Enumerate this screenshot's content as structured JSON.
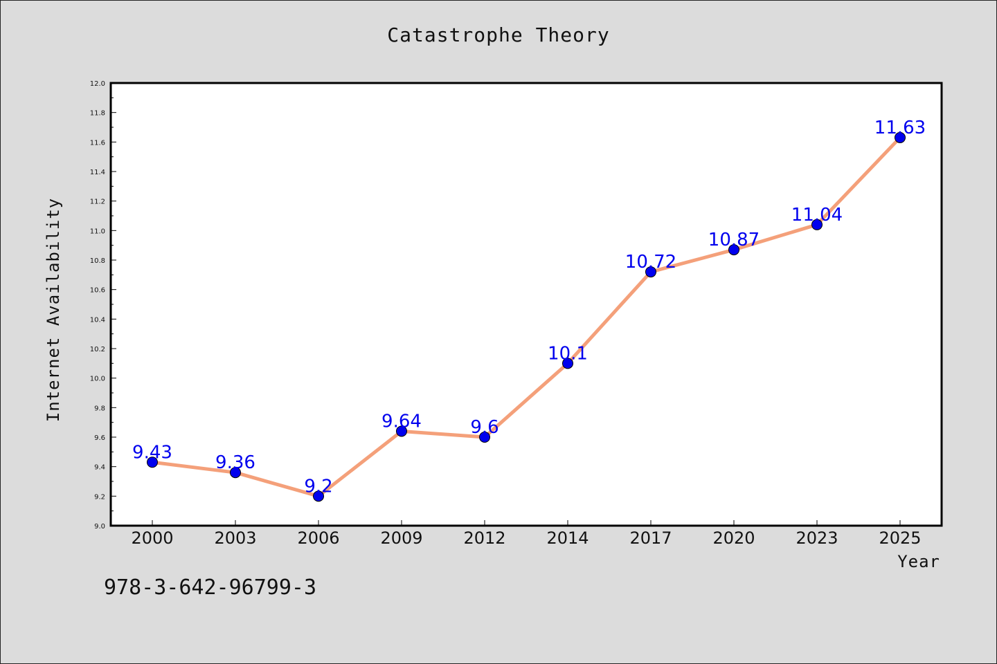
{
  "chart_data": {
    "type": "line",
    "title": "Catastrophe Theory",
    "xlabel": "Year",
    "ylabel": "Internet Availability",
    "categories": [
      "2000",
      "2003",
      "2006",
      "2009",
      "2012",
      "2014",
      "2017",
      "2020",
      "2023",
      "2025"
    ],
    "series": [
      {
        "values": [
          9.43,
          9.36,
          9.2,
          9.64,
          9.6,
          10.1,
          10.72,
          10.87,
          11.04,
          11.63
        ],
        "labels": [
          "9.43",
          "9.36",
          "9.2",
          "9.64",
          "9.6",
          "10.1",
          "10.72",
          "10.87",
          "11.04",
          "11.63"
        ],
        "line_color": "#f4a07a",
        "marker_color": "#0000ee"
      }
    ],
    "ylim": [
      9.0,
      12.0
    ],
    "yticks": [
      "9.0",
      "9.2",
      "9.4",
      "9.6",
      "9.8",
      "10.0",
      "10.2",
      "10.4",
      "10.6",
      "10.8",
      "11.0",
      "11.2",
      "11.4",
      "11.6",
      "11.8",
      "12.0"
    ],
    "grid": false,
    "legend": "none"
  },
  "footer": {
    "isbn": "978-3-642-96799-3"
  }
}
